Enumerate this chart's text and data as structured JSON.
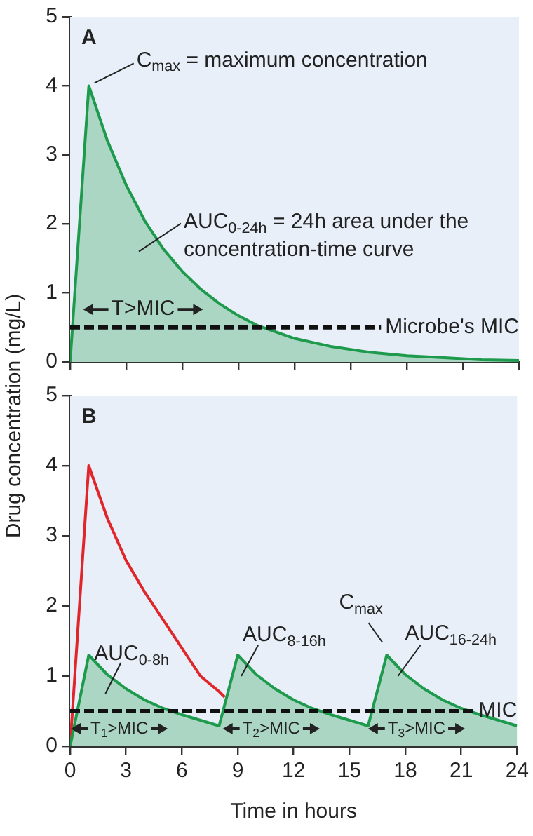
{
  "chart_data": [
    {
      "type": "area",
      "title": "A",
      "ylabel": "Drug concentration (mg/L)",
      "tick_labels": "y",
      "grid": false,
      "marker": "none",
      "line_style": "solid",
      "xlim": [
        0,
        24
      ],
      "ylim": [
        0,
        5
      ],
      "xticks": [
        0,
        3,
        6,
        9,
        12,
        15,
        18,
        21,
        24
      ],
      "yticks": [
        0,
        1,
        2,
        3,
        4,
        5
      ],
      "series": [
        {
          "color": "#1e9a4c",
          "x": [
            0,
            1,
            2,
            3,
            4,
            5,
            6,
            7,
            8,
            9,
            10,
            12,
            14,
            16,
            18,
            20,
            22,
            24
          ],
          "values": [
            0,
            4,
            3.2,
            2.56,
            2.04,
            1.63,
            1.31,
            1.05,
            0.84,
            0.67,
            0.53,
            0.34,
            0.22,
            0.14,
            0.09,
            0.06,
            0.03,
            0.02
          ]
        }
      ],
      "ref_lines": [
        {
          "axis": "y",
          "value": 0.5,
          "label": "Microbe's MIC",
          "color": "#111111",
          "line_style": "dashed"
        }
      ],
      "annotations": [
        {
          "text": "C$_{max}$ = maximum concentration",
          "x": 1,
          "y": 4
        },
        "AUC$_{0-24h}$ = 24h area under the concentration-time curve",
        "T>MIC"
      ]
    },
    {
      "type": "line",
      "title": "B",
      "xlabel": "Time in hours",
      "grid": false,
      "marker": "none",
      "line_style": "solid",
      "xlim": [
        0,
        24
      ],
      "ylim": [
        0,
        5
      ],
      "xticks": [
        0,
        3,
        6,
        9,
        12,
        15,
        18,
        21,
        24
      ],
      "yticks": [
        0,
        1,
        2,
        3,
        4,
        5
      ],
      "series": [
        {
          "type": "area",
          "color": "#1e9a4c",
          "x": [
            0,
            1,
            2,
            3,
            4,
            5,
            6,
            7,
            8,
            9,
            10,
            11,
            12,
            13,
            14,
            15,
            16,
            17,
            18,
            19,
            20,
            21,
            22,
            23,
            24
          ],
          "values": [
            0,
            1.3,
            1.02,
            0.82,
            0.66,
            0.54,
            0.45,
            0.37,
            0.29,
            1.3,
            1.02,
            0.82,
            0.66,
            0.54,
            0.45,
            0.37,
            0.29,
            1.3,
            1.02,
            0.82,
            0.66,
            0.54,
            0.45,
            0.37,
            0.29
          ]
        },
        {
          "color": "#e0262b",
          "x": [
            0,
            1,
            2,
            3,
            4,
            5,
            6,
            7,
            8,
            8.3
          ],
          "values": [
            0,
            4,
            3.25,
            2.65,
            2.2,
            1.8,
            1.4,
            1,
            0.78,
            0.7
          ]
        }
      ],
      "ref_lines": [
        {
          "axis": "y",
          "value": 0.5,
          "label": "MIC",
          "color": "#111111",
          "line_style": "dashed"
        }
      ],
      "annotations": [
        "AUC$_{0-8h}$",
        "AUC$_{8-16h}$",
        {
          "text": "C$_{max}$",
          "x": 17,
          "y": 1.3
        },
        "AUC$_{16-24h}$",
        "T$_{1}$>MIC",
        "T$_{2}$>MIC",
        "T$_{3}$>MIC"
      ]
    }
  ]
}
